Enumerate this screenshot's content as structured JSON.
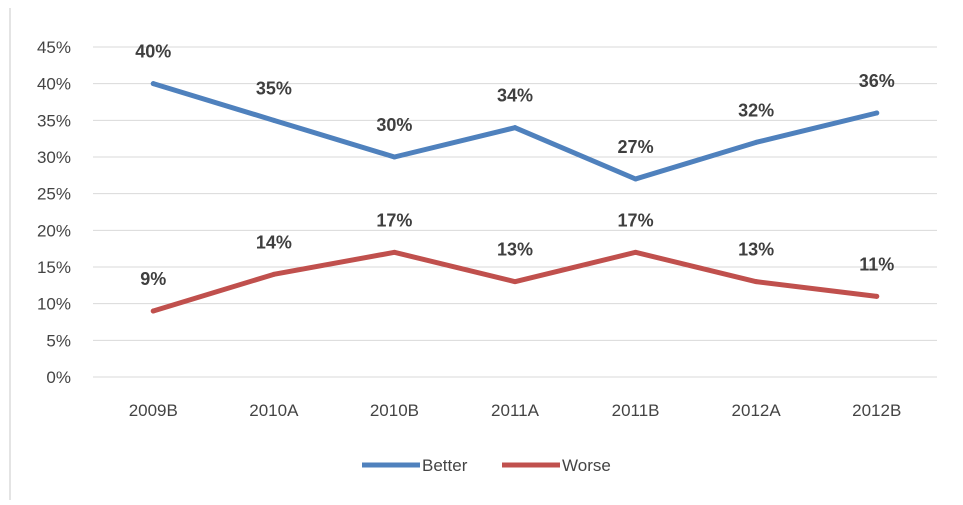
{
  "chart_data": {
    "type": "line",
    "title": "",
    "xlabel": "",
    "ylabel": "",
    "categories": [
      "2009B",
      "2010A",
      "2010B",
      "2011A",
      "2011B",
      "2012A",
      "2012B"
    ],
    "ylim": [
      0,
      45
    ],
    "yticks": [
      0,
      5,
      10,
      15,
      20,
      25,
      30,
      35,
      40,
      45
    ],
    "ytick_suffix": "%",
    "grid": true,
    "legend_position": "bottom",
    "series": [
      {
        "name": "Better",
        "color": "#4f81bd",
        "values": [
          40,
          35,
          30,
          34,
          27,
          32,
          36
        ],
        "labels": [
          "40%",
          "35%",
          "30%",
          "34%",
          "27%",
          "32%",
          "36%"
        ]
      },
      {
        "name": "Worse",
        "color": "#c0504d",
        "values": [
          9,
          14,
          17,
          13,
          17,
          13,
          11
        ],
        "labels": [
          "9%",
          "14%",
          "17%",
          "13%",
          "17%",
          "13%",
          "11%"
        ]
      }
    ]
  }
}
